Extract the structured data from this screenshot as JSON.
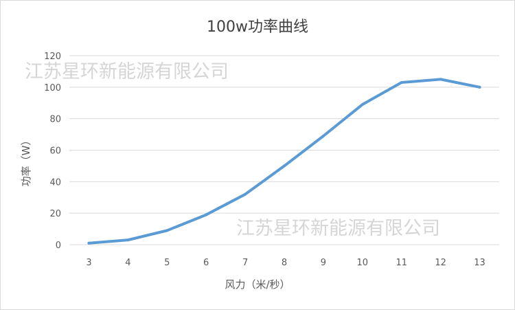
{
  "chart_data": {
    "type": "line",
    "title": "100w功率曲线",
    "xlabel": "风力（米/秒）",
    "ylabel": "功率（W）",
    "x": [
      3,
      4,
      5,
      6,
      7,
      8,
      9,
      10,
      11,
      12,
      13
    ],
    "series": [
      {
        "values": [
          1,
          3,
          9,
          19,
          32,
          50,
          69,
          89,
          103,
          105,
          100
        ],
        "color": "#5b9bd5"
      }
    ],
    "yticks": [
      0,
      20,
      40,
      60,
      80,
      100,
      120
    ],
    "ylim": [
      0,
      120
    ],
    "grid": true,
    "legend": "none"
  },
  "watermarks": [
    "江苏星环新能源有限公司",
    "江苏星环新能源有限公司"
  ]
}
